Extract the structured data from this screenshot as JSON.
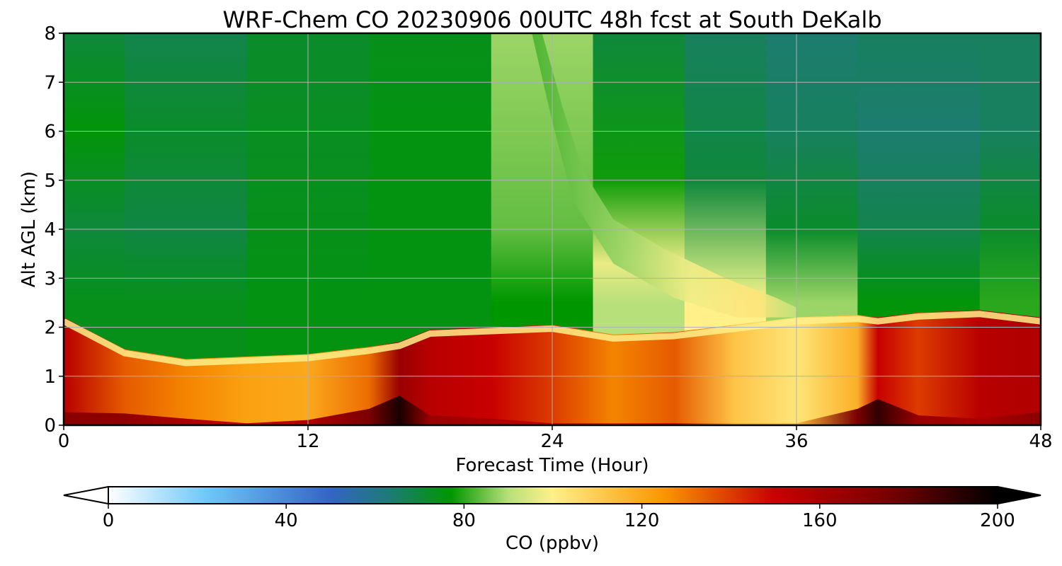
{
  "chart_data": {
    "type": "heatmap",
    "title": "WRF-Chem CO  20230906 00UTC 48h fcst at South DeKalb",
    "xlabel": "Forecast Time (Hour)",
    "ylabel": "Alt AGL (km)",
    "xlim": [
      0,
      48
    ],
    "ylim": [
      0,
      8
    ],
    "x_ticks": [
      0,
      12,
      24,
      36,
      48
    ],
    "y_ticks": [
      0,
      1,
      2,
      3,
      4,
      5,
      6,
      7,
      8
    ],
    "grid": true,
    "colorbar": {
      "label": "CO  (ppbv)",
      "min": 0,
      "max": 200,
      "ticks": [
        0,
        40,
        80,
        120,
        160,
        200
      ],
      "extend": "both",
      "orientation": "horizontal",
      "color_stops": [
        {
          "value": 0,
          "color": "#ffffff"
        },
        {
          "value": 22,
          "color": "#6ec8f8"
        },
        {
          "value": 50,
          "color": "#3464c4"
        },
        {
          "value": 63,
          "color": "#1e7a78"
        },
        {
          "value": 77,
          "color": "#009600"
        },
        {
          "value": 90,
          "color": "#b8e07a"
        },
        {
          "value": 100,
          "color": "#fff08a"
        },
        {
          "value": 125,
          "color": "#fa9600"
        },
        {
          "value": 150,
          "color": "#c80000"
        },
        {
          "value": 175,
          "color": "#7a0000"
        },
        {
          "value": 200,
          "color": "#000000"
        }
      ]
    },
    "hours": [
      0,
      3,
      6,
      9,
      12,
      15,
      16.5,
      18,
      21,
      24,
      27,
      30,
      33,
      36,
      39,
      40,
      42,
      45,
      48
    ],
    "boundary_layer_top_km": [
      2.2,
      1.55,
      1.35,
      1.4,
      1.45,
      1.6,
      1.7,
      1.95,
      2.0,
      2.05,
      1.85,
      1.9,
      2.05,
      2.2,
      2.25,
      2.2,
      2.3,
      2.35,
      2.2
    ],
    "boundary_layer_co_ppbv": [
      155,
      135,
      128,
      122,
      120,
      132,
      165,
      155,
      150,
      140,
      128,
      135,
      112,
      103,
      118,
      150,
      140,
      155,
      158
    ],
    "surface_co_ppbv": [
      170,
      168,
      160,
      150,
      158,
      175,
      195,
      165,
      160,
      150,
      145,
      150,
      120,
      115,
      175,
      190,
      165,
      160,
      170
    ],
    "free_troposphere_co_ppbv": [
      {
        "hour": 0,
        "alt_km": [
          2.5,
          4,
          6,
          8
        ],
        "values": [
          74,
          70,
          76,
          70
        ]
      },
      {
        "hour": 6,
        "alt_km": [
          2.5,
          4,
          6,
          8
        ],
        "values": [
          74,
          69,
          72,
          68
        ]
      },
      {
        "hour": 12,
        "alt_km": [
          2.5,
          4,
          6,
          8
        ],
        "values": [
          75,
          74,
          73,
          72
        ]
      },
      {
        "hour": 18,
        "alt_km": [
          2.5,
          4,
          6,
          8
        ],
        "values": [
          75,
          75,
          75,
          74
        ]
      },
      {
        "hour": 24,
        "alt_km": [
          2.5,
          4,
          6,
          8
        ],
        "values": [
          77,
          84,
          86,
          88
        ]
      },
      {
        "hour": 28,
        "alt_km": [
          2.5,
          3.3,
          5,
          8
        ],
        "values": [
          90,
          97,
          78,
          70
        ]
      },
      {
        "hour": 33,
        "alt_km": [
          2.5,
          3,
          5,
          8
        ],
        "values": [
          100,
          92,
          70,
          66
        ]
      },
      {
        "hour": 36,
        "alt_km": [
          2.5,
          4,
          6,
          8
        ],
        "values": [
          88,
          72,
          66,
          64
        ]
      },
      {
        "hour": 42,
        "alt_km": [
          2.5,
          4,
          6,
          8
        ],
        "values": [
          76,
          68,
          64,
          66
        ]
      },
      {
        "hour": 48,
        "alt_km": [
          2.5,
          4,
          6,
          8
        ],
        "values": [
          80,
          72,
          66,
          66
        ]
      }
    ]
  }
}
